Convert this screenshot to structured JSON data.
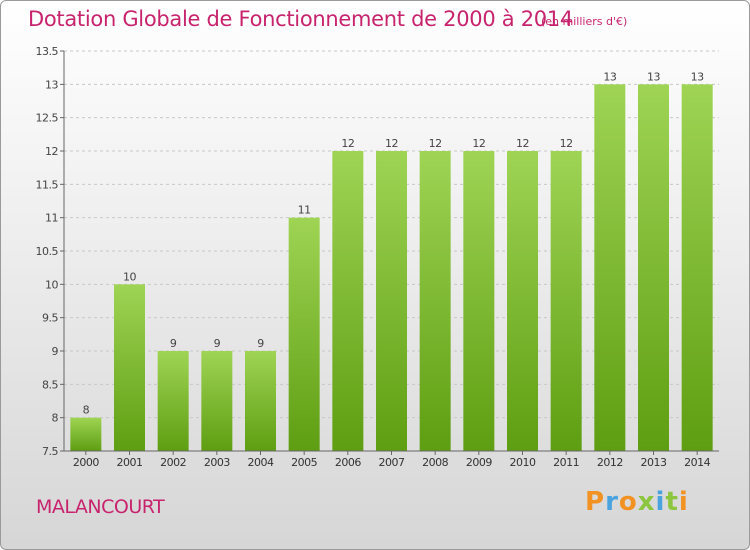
{
  "title": "Dotation Globale de Fonctionnement de 2000 à 2014",
  "subtitle": "(en milliers d'€)",
  "commune": "MALANCOURT",
  "logo": {
    "text": "Proxiti",
    "colors": [
      "#f29222",
      "#4aa3df",
      "#f29222",
      "#8cc63f",
      "#4aa3df",
      "#8cc63f",
      "#f29222"
    ]
  },
  "colors": {
    "bar_top": "#9fd454",
    "bar_bottom": "#5e9e12",
    "title": "#c8246e",
    "grid": "#c8c8c8"
  },
  "chart_data": {
    "type": "bar",
    "categories": [
      "2000",
      "2001",
      "2002",
      "2003",
      "2004",
      "2005",
      "2006",
      "2007",
      "2008",
      "2009",
      "2010",
      "2011",
      "2012",
      "2013",
      "2014"
    ],
    "values": [
      8,
      10,
      9,
      9,
      9,
      11,
      12,
      12,
      12,
      12,
      12,
      12,
      13,
      13,
      13
    ],
    "data_labels": [
      "8",
      "10",
      "9",
      "9",
      "9",
      "11",
      "12",
      "12",
      "12",
      "12",
      "12",
      "12",
      "13",
      "13",
      "13"
    ],
    "yticks": [
      "7.5",
      "8",
      "8.5",
      "9",
      "9.5",
      "10",
      "10.5",
      "11",
      "11.5",
      "12",
      "12.5",
      "13",
      "13.5"
    ],
    "ylim": [
      7.5,
      13.5
    ],
    "grid": true,
    "legend": "none"
  }
}
